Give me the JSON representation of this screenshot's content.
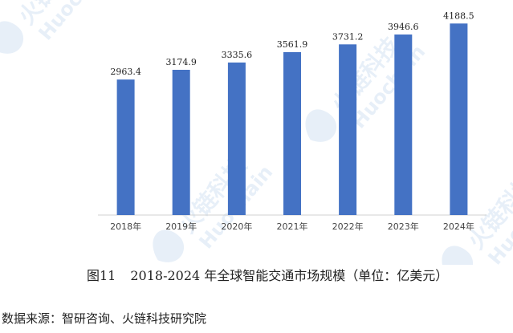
{
  "watermark": {
    "cn": "火链科技",
    "en": "Huochain",
    "color": "#1f6fc4"
  },
  "caption": {
    "figure_no": "图11",
    "text": "2018-2024 年全球智能交通市场规模（单位：亿美元）"
  },
  "source": "数据来源：智研咨询、火链科技研究院",
  "chart_data": {
    "type": "bar",
    "categories": [
      "2018年",
      "2019年",
      "2020年",
      "2021年",
      "2022年",
      "2023年",
      "2024年"
    ],
    "values": [
      2963.4,
      3174.9,
      3335.6,
      3561.9,
      3731.2,
      3946.6,
      4188.5
    ],
    "value_labels": [
      "2963.4",
      "3174.9",
      "3335.6",
      "3561.9",
      "3731.2",
      "3946.6",
      "4188.5"
    ],
    "bar_color": "#4472c4",
    "ylim": [
      0,
      4400
    ],
    "grid": false,
    "legend": "none"
  }
}
